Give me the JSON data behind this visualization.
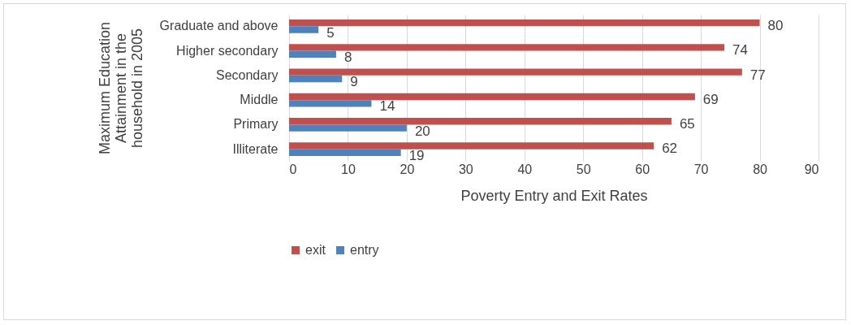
{
  "chart_data": {
    "type": "bar",
    "orientation": "horizontal",
    "xlabel": "Poverty Entry and Exit Rates",
    "ylabel": "Maximum Education Attainment in the household in 2005",
    "categories": [
      "Graduate and above",
      "Higher secondary",
      "Secondary",
      "Middle",
      "Primary",
      "Illiterate"
    ],
    "series": [
      {
        "name": "exit",
        "color": "#c0504d",
        "values": [
          80,
          74,
          77,
          69,
          65,
          62
        ]
      },
      {
        "name": "entry",
        "color": "#4f81bd",
        "values": [
          5,
          8,
          9,
          14,
          20,
          19
        ]
      }
    ],
    "xlim": [
      0,
      90
    ],
    "xticks": [
      0,
      10,
      20,
      30,
      40,
      50,
      60,
      70,
      80,
      90
    ],
    "grid": "x",
    "legend": "bottom",
    "data_labels": true
  }
}
